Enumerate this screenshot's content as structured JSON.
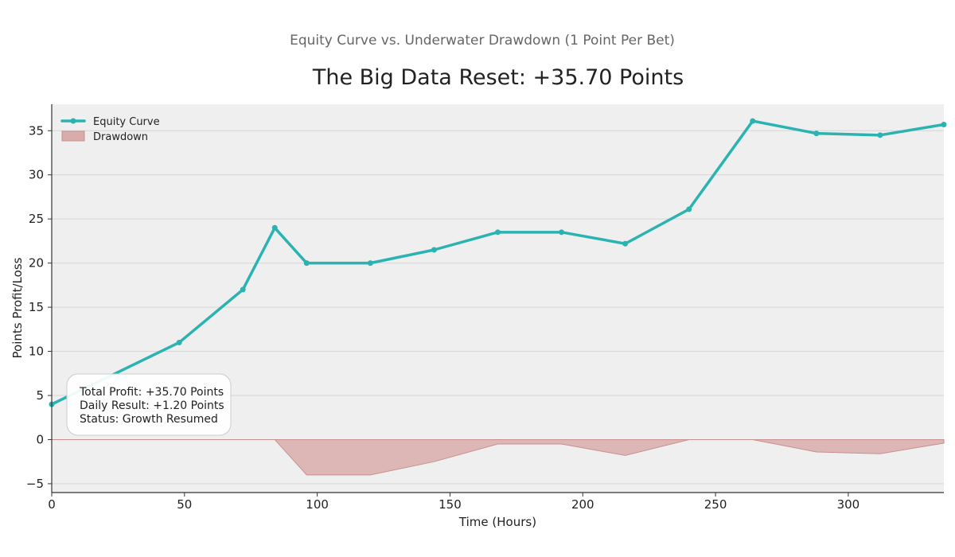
{
  "chart_data": {
    "type": "line",
    "subtitle": "Equity Curve vs. Underwater Drawdown (1 Point Per Bet)",
    "title": "The Big Data Reset: +35.70 Points",
    "xlabel": "Time (Hours)",
    "ylabel": "Points Profit/Loss",
    "xlim": [
      0,
      336
    ],
    "ylim": [
      -6,
      38
    ],
    "xticks": [
      0,
      50,
      100,
      150,
      200,
      250,
      300
    ],
    "yticks": [
      -5,
      0,
      5,
      10,
      15,
      20,
      25,
      30,
      35
    ],
    "grid": "horizontal",
    "legend_position": "top-left",
    "series": [
      {
        "name": "Equity Curve",
        "color": "#2ab3b1",
        "x": [
          0,
          48,
          72,
          84,
          96,
          120,
          144,
          168,
          192,
          216,
          240,
          264,
          288,
          312,
          336
        ],
        "values": [
          4.0,
          11.0,
          17.0,
          24.0,
          20.0,
          20.0,
          21.5,
          23.5,
          23.5,
          22.2,
          26.1,
          36.1,
          34.7,
          34.5,
          35.7
        ]
      },
      {
        "name": "Drawdown",
        "color": "#d9abab",
        "x": [
          0,
          84,
          96,
          120,
          144,
          168,
          192,
          216,
          240,
          264,
          288,
          312,
          336
        ],
        "values": [
          0,
          0,
          -4.0,
          -4.0,
          -2.5,
          -0.5,
          -0.5,
          -1.8,
          0,
          0,
          -1.4,
          -1.6,
          -0.4
        ]
      }
    ],
    "annotation": {
      "lines": [
        "Total Profit: +35.70 Points",
        "Daily Result: +1.20 Points",
        "Status: Growth Resumed"
      ]
    }
  }
}
